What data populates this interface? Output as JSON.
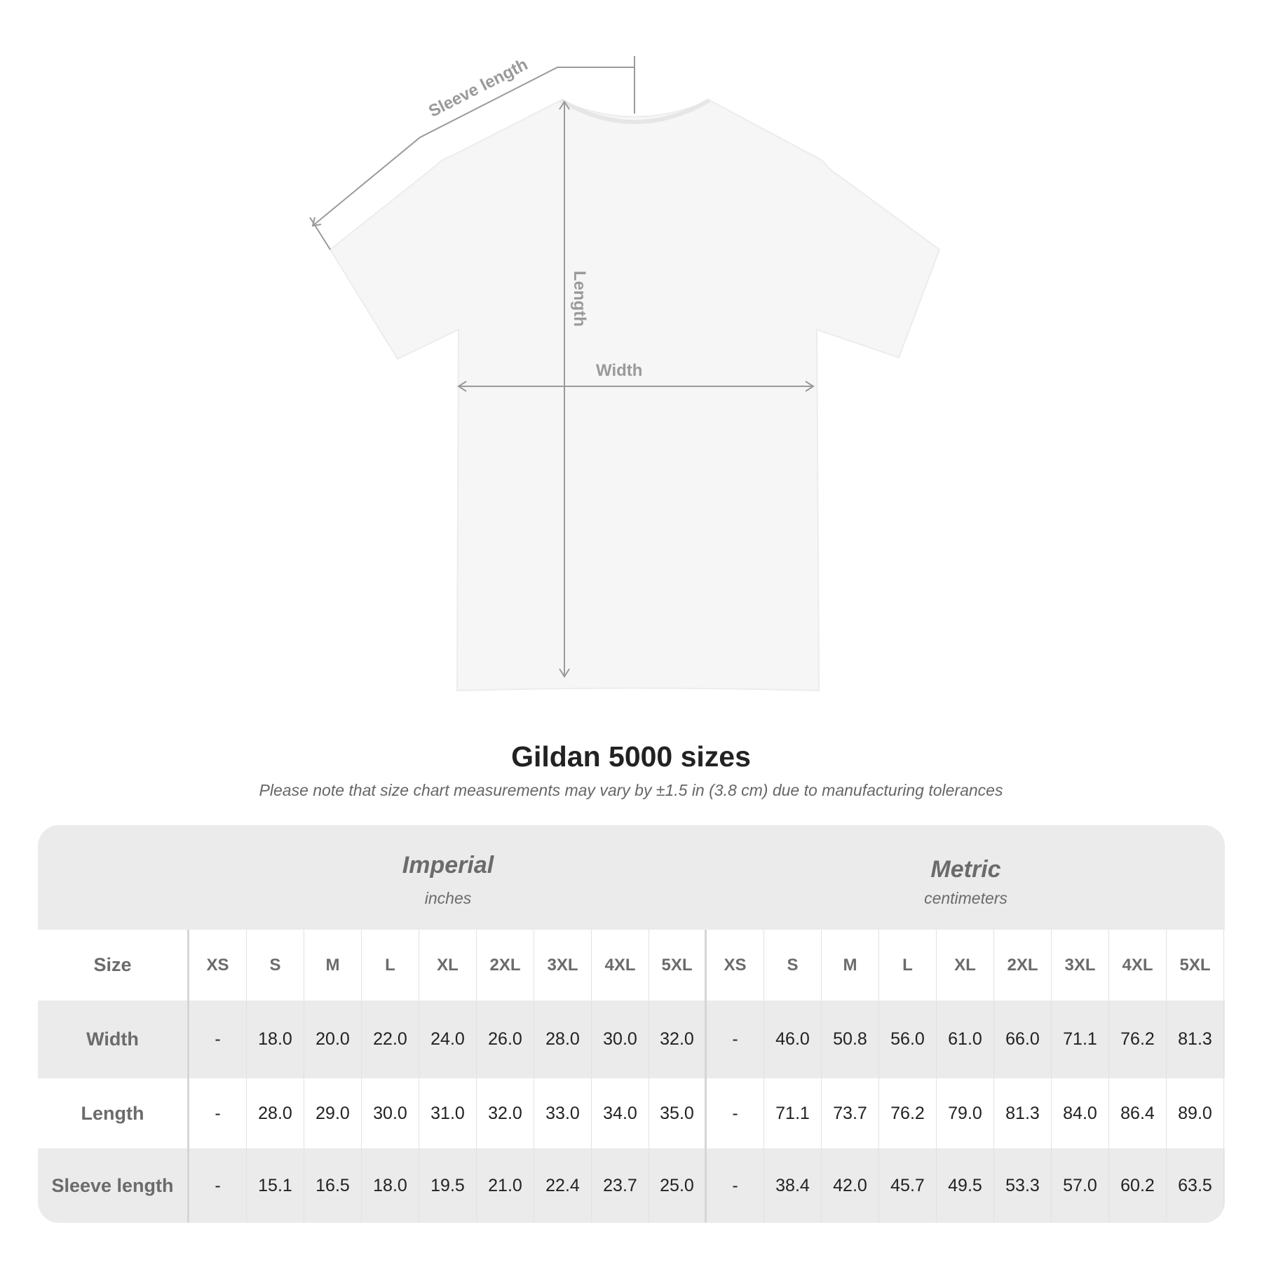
{
  "diagram": {
    "sleeve_label": "Sleeve length",
    "length_label": "Length",
    "width_label": "Width"
  },
  "title": "Gildan 5000 sizes",
  "note": "Please note that size chart measurements may vary by ±1.5 in (3.8 cm) due to manufacturing tolerances",
  "table": {
    "imperial": {
      "name": "Imperial",
      "unit": "inches"
    },
    "metric": {
      "name": "Metric",
      "unit": "centimeters"
    },
    "size_label": "Size",
    "sizes": [
      "XS",
      "S",
      "M",
      "L",
      "XL",
      "2XL",
      "3XL",
      "4XL",
      "5XL"
    ],
    "rows": [
      {
        "label": "Width",
        "imperial": [
          "-",
          "18.0",
          "20.0",
          "22.0",
          "24.0",
          "26.0",
          "28.0",
          "30.0",
          "32.0"
        ],
        "metric": [
          "-",
          "46.0",
          "50.8",
          "56.0",
          "61.0",
          "66.0",
          "71.1",
          "76.2",
          "81.3"
        ]
      },
      {
        "label": "Length",
        "imperial": [
          "-",
          "28.0",
          "29.0",
          "30.0",
          "31.0",
          "32.0",
          "33.0",
          "34.0",
          "35.0"
        ],
        "metric": [
          "-",
          "71.1",
          "73.7",
          "76.2",
          "79.0",
          "81.3",
          "84.0",
          "86.4",
          "89.0"
        ]
      },
      {
        "label": "Sleeve length",
        "imperial": [
          "-",
          "15.1",
          "16.5",
          "18.0",
          "19.5",
          "21.0",
          "22.4",
          "23.7",
          "25.0"
        ],
        "metric": [
          "-",
          "38.4",
          "42.0",
          "45.7",
          "49.5",
          "53.3",
          "57.0",
          "60.2",
          "63.5"
        ]
      }
    ]
  }
}
